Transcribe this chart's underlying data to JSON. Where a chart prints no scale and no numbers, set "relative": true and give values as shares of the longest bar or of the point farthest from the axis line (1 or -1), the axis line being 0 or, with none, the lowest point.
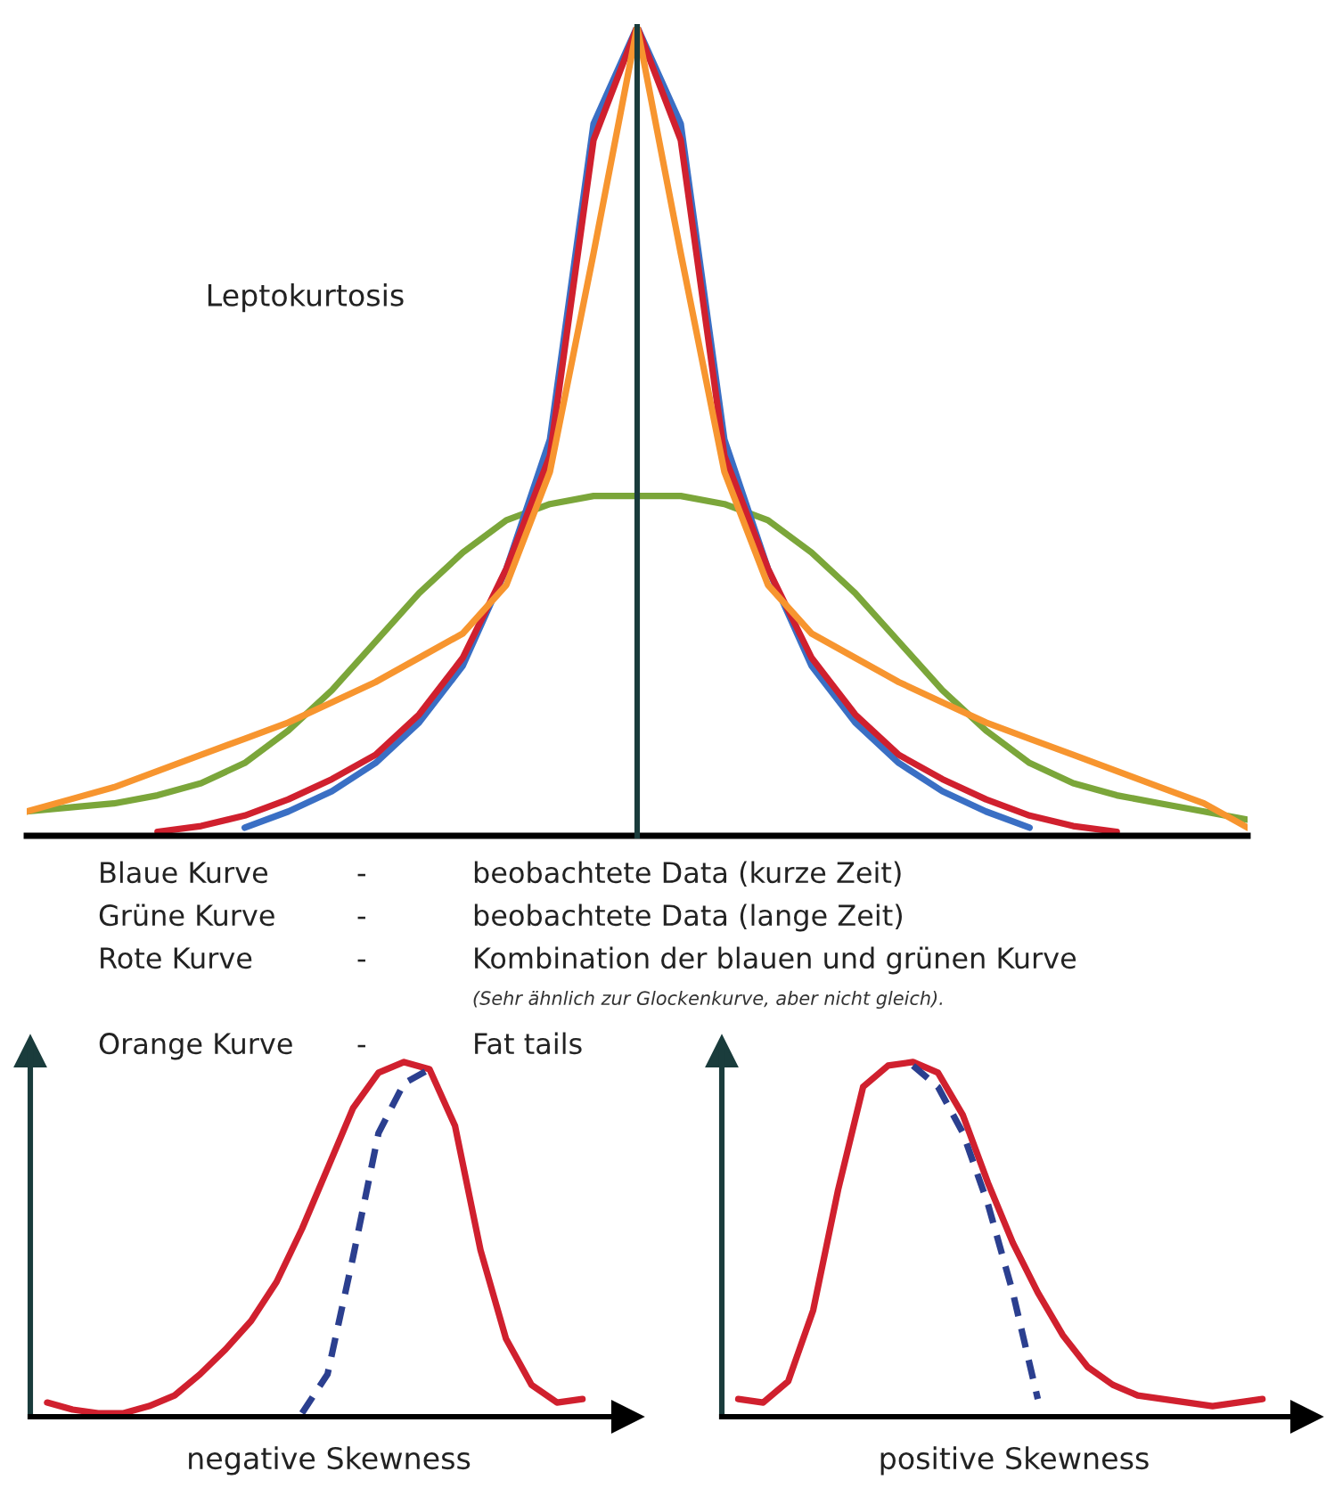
{
  "chart_data": [
    {
      "type": "line",
      "relative": true,
      "categories": [
        null,
        null,
        null,
        null,
        null,
        null,
        null,
        null,
        null,
        null,
        null,
        null,
        null,
        null,
        null,
        null,
        null,
        null,
        null,
        null,
        null,
        null,
        null,
        null,
        null,
        null,
        null,
        null,
        null
      ],
      "series": [
        {
          "color": "#7ba63a",
          "values": [
            0.03,
            0.035,
            0.04,
            0.05,
            0.065,
            0.09,
            0.13,
            0.18,
            0.24,
            0.3,
            0.35,
            0.39,
            0.41,
            0.42,
            0.42,
            0.42,
            0.41,
            0.39,
            0.35,
            0.3,
            0.24,
            0.18,
            0.13,
            0.09,
            0.065,
            0.05,
            0.04,
            0.03,
            0.02
          ]
        },
        {
          "color": "#3a6fc4",
          "values": [
            null,
            null,
            null,
            null,
            null,
            0.01,
            0.03,
            0.055,
            0.09,
            0.14,
            0.21,
            0.33,
            0.49,
            0.88,
            1.0,
            0.88,
            0.49,
            0.33,
            0.21,
            0.14,
            0.09,
            0.055,
            0.03,
            0.01,
            null,
            null,
            null,
            null,
            null
          ]
        },
        {
          "color": "#d0202e",
          "values": [
            null,
            null,
            null,
            0.005,
            0.012,
            0.025,
            0.045,
            0.07,
            0.1,
            0.15,
            0.22,
            0.33,
            0.47,
            0.86,
            1.0,
            0.86,
            0.47,
            0.33,
            0.22,
            0.15,
            0.1,
            0.07,
            0.045,
            0.025,
            0.012,
            0.005,
            null,
            null,
            null
          ]
        },
        {
          "color": "#f7952f",
          "values": [
            0.03,
            0.045,
            0.06,
            0.08,
            0.1,
            0.12,
            0.14,
            0.165,
            0.19,
            0.22,
            0.25,
            0.31,
            0.45,
            0.72,
            1.0,
            0.72,
            0.45,
            0.31,
            0.25,
            0.22,
            0.19,
            0.165,
            0.14,
            0.12,
            0.1,
            0.08,
            0.06,
            0.04,
            0.01
          ]
        }
      ],
      "annotations": [
        "Leptokurtosis",
        "Blaue Kurve",
        "-",
        "beobachtete Data (kurze Zeit)",
        "Grüne Kurve",
        "-",
        "beobachtete Data (lange Zeit)",
        "Rote Kurve",
        "-",
        "Kombination der blauen und grünen Kurve",
        "(Sehr ähnlich zur Glockenkurve, aber nicht gleich).",
        "Orange Kurve",
        "-",
        "Fat tails"
      ]
    },
    {
      "type": "line",
      "relative": true,
      "xlabel": "negative Skewness",
      "categories": [
        null,
        null,
        null,
        null,
        null,
        null,
        null,
        null,
        null,
        null,
        null,
        null,
        null,
        null,
        null,
        null,
        null,
        null,
        null,
        null,
        null,
        null
      ],
      "series": [
        {
          "color": "#d0202e",
          "values": [
            0.04,
            0.02,
            0.01,
            0.01,
            0.03,
            0.06,
            0.12,
            0.19,
            0.27,
            0.38,
            0.53,
            0.7,
            0.87,
            0.97,
            1.0,
            0.98,
            0.82,
            0.47,
            0.22,
            0.09,
            0.04,
            0.05
          ]
        },
        {
          "color": "#2b3f8f",
          "line_style": "dashed",
          "values": [
            null,
            null,
            null,
            null,
            null,
            null,
            null,
            null,
            null,
            null,
            0.01,
            0.12,
            0.45,
            0.8,
            0.94,
            0.98,
            null,
            null,
            null,
            null,
            null,
            null
          ]
        }
      ]
    },
    {
      "type": "line",
      "relative": true,
      "xlabel": "positive Skewness",
      "categories": [
        null,
        null,
        null,
        null,
        null,
        null,
        null,
        null,
        null,
        null,
        null,
        null,
        null,
        null,
        null,
        null,
        null,
        null,
        null,
        null,
        null,
        null
      ],
      "series": [
        {
          "color": "#d0202e",
          "values": [
            0.05,
            0.04,
            0.1,
            0.3,
            0.64,
            0.93,
            0.99,
            1.0,
            0.97,
            0.85,
            0.66,
            0.49,
            0.35,
            0.23,
            0.14,
            0.09,
            0.06,
            0.05,
            0.04,
            0.03,
            0.04,
            0.05
          ]
        },
        {
          "color": "#2b3f8f",
          "line_style": "dashed",
          "values": [
            null,
            null,
            null,
            null,
            null,
            null,
            null,
            0.99,
            0.93,
            0.8,
            0.6,
            0.35,
            0.05,
            null,
            null,
            null,
            null,
            null,
            null,
            null,
            null,
            null
          ]
        }
      ]
    }
  ]
}
